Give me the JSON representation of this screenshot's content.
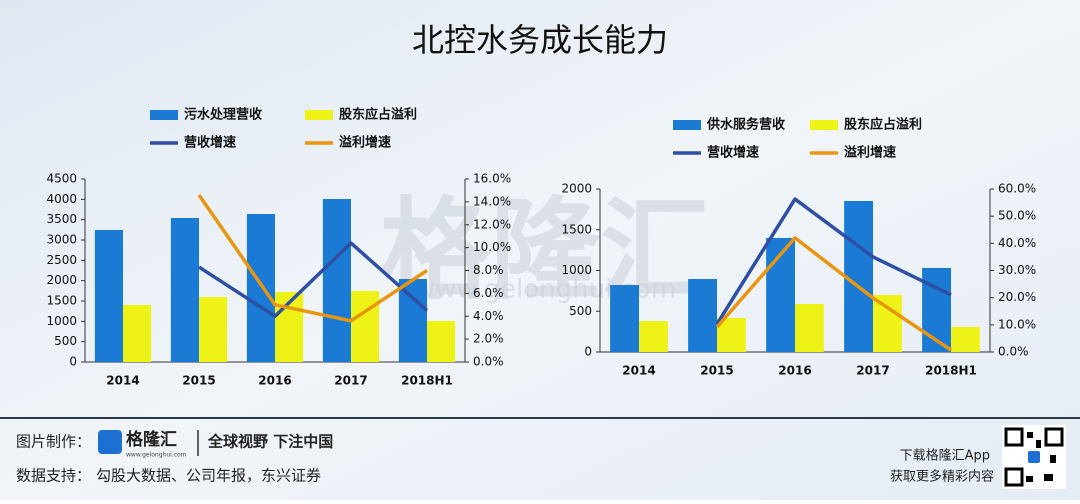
{
  "header": {
    "title": "北控水务成长能力",
    "watermark": "格隆汇",
    "watermark_url": "www.gelonghui.com"
  },
  "chart_data": [
    {
      "type": "combo",
      "categories": [
        "2014",
        "2015",
        "2016",
        "2017",
        "2018H1"
      ],
      "series": [
        {
          "name": "污水处理营收",
          "type": "bar",
          "color": "#1a7ad4",
          "values": [
            3246,
            3541,
            3639,
            4008,
            2041
          ]
        },
        {
          "name": "股东应占溢利",
          "type": "bar",
          "color": "#eef216",
          "values": [
            1402,
            1598,
            1721,
            1746,
            1008
          ]
        },
        {
          "name": "营收增速",
          "type": "line",
          "axis": "y2",
          "color": "#2e4fa3",
          "values": [
            null,
            8.3,
            4.0,
            10.4,
            4.5
          ]
        },
        {
          "name": "溢利增速",
          "type": "line",
          "axis": "y2",
          "color": "#e8950f",
          "values": [
            null,
            14.6,
            5.0,
            3.6,
            8.0
          ]
        }
      ],
      "ylim": [
        0,
        4500
      ],
      "yticks": [
        0,
        500,
        1000,
        1500,
        2000,
        2500,
        3000,
        3500,
        4000,
        4500
      ],
      "y2lim": [
        0,
        16
      ],
      "y2ticks": [
        {
          "value": 0,
          "label": "0.0%"
        },
        {
          "value": 2,
          "label": "2.0%"
        },
        {
          "value": 4,
          "label": "4.0%"
        },
        {
          "value": 6,
          "label": "6.0%"
        },
        {
          "value": 8,
          "label": "8.0%"
        },
        {
          "value": 10,
          "label": "10.0%"
        },
        {
          "value": 12,
          "label": "12.0%"
        },
        {
          "value": 14,
          "label": "14.0%"
        },
        {
          "value": 16,
          "label": "16.0%"
        }
      ],
      "legend": "top"
    },
    {
      "type": "combo",
      "categories": [
        "2014",
        "2015",
        "2016",
        "2017",
        "2018H1"
      ],
      "series": [
        {
          "name": "供水服务营收",
          "type": "bar",
          "color": "#1a7ad4",
          "values": [
            822,
            896,
            1399,
            1853,
            1031
          ]
        },
        {
          "name": "股东应占溢利",
          "type": "bar",
          "color": "#eef216",
          "values": [
            380,
            417,
            589,
            699,
            307
          ]
        },
        {
          "name": "营收增速",
          "type": "line",
          "axis": "y2",
          "color": "#2e4fa3",
          "values": [
            null,
            10.3,
            56.3,
            35.0,
            21.0
          ]
        },
        {
          "name": "溢利增速",
          "type": "line",
          "axis": "y2",
          "color": "#e8950f",
          "values": [
            null,
            9.2,
            42.0,
            19.9,
            0.7
          ]
        }
      ],
      "ylim": [
        0,
        2000
      ],
      "yticks": [
        0,
        500,
        1000,
        1500,
        2000
      ],
      "y2lim": [
        0,
        60
      ],
      "y2ticks": [
        {
          "value": 0,
          "label": "0.0%"
        },
        {
          "value": 10,
          "label": "10.0%"
        },
        {
          "value": 20,
          "label": "20.0%"
        },
        {
          "value": 30,
          "label": "30.0%"
        },
        {
          "value": 40,
          "label": "40.0%"
        },
        {
          "value": 50,
          "label": "50.0%"
        },
        {
          "value": 60,
          "label": "60.0%"
        }
      ],
      "legend": "top"
    }
  ],
  "footer": {
    "made_by_label": "图片制作：",
    "logo": "格隆汇",
    "logo_url": "www.gelonghui.com",
    "slogan": "全球视野 下注中国",
    "source_label": "数据支持：",
    "source": "勾股大数据、公司年报，东兴证券",
    "app": "下载格隆汇App",
    "app_sub": "获取更多精彩内容"
  }
}
